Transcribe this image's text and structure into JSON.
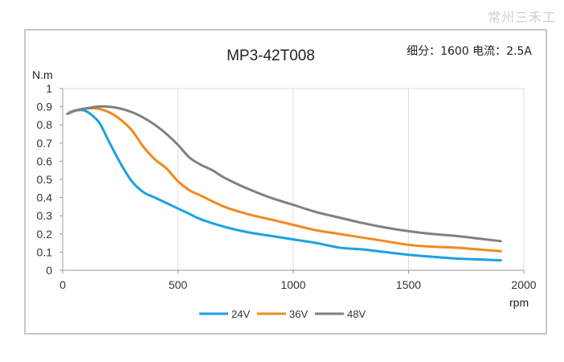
{
  "watermark": "常州三禾工",
  "chart_data": {
    "type": "line",
    "title": "MP3-42T008",
    "info": "细分：1600 电流：2.5A",
    "xlabel": "rpm",
    "ylabel": "N.m",
    "xlim": [
      0,
      2000
    ],
    "ylim": [
      0,
      1
    ],
    "xticks": [
      0,
      500,
      1000,
      1500,
      2000
    ],
    "yticks": [
      0,
      0.1,
      0.2,
      0.3,
      0.4,
      0.5,
      0.6,
      0.7,
      0.8,
      0.9,
      1
    ],
    "xtick_labels": [
      "0",
      "500",
      "1000",
      "1500",
      "2000"
    ],
    "ytick_labels": [
      "0",
      "0.1",
      "0.2",
      "0.3",
      "0.4",
      "0.5",
      "0.6",
      "0.7",
      "0.8",
      "0.9",
      "1"
    ],
    "grid": "vertical",
    "legend_position": "bottom",
    "series": [
      {
        "name": "24V",
        "color": "#1ba1e2",
        "x": [
          30,
          60,
          90,
          120,
          160,
          200,
          250,
          300,
          350,
          400,
          450,
          500,
          550,
          600,
          700,
          800,
          900,
          1000,
          1100,
          1200,
          1300,
          1400,
          1500,
          1600,
          1700,
          1800,
          1900
        ],
        "y": [
          0.87,
          0.88,
          0.88,
          0.86,
          0.81,
          0.71,
          0.59,
          0.49,
          0.43,
          0.4,
          0.37,
          0.34,
          0.31,
          0.28,
          0.24,
          0.21,
          0.19,
          0.17,
          0.15,
          0.125,
          0.115,
          0.1,
          0.085,
          0.075,
          0.065,
          0.06,
          0.055
        ]
      },
      {
        "name": "36V",
        "color": "#f08a1d",
        "x": [
          30,
          60,
          100,
          150,
          200,
          250,
          300,
          350,
          400,
          450,
          500,
          550,
          600,
          700,
          800,
          900,
          1000,
          1100,
          1200,
          1300,
          1400,
          1500,
          1600,
          1700,
          1800,
          1900
        ],
        "y": [
          0.87,
          0.88,
          0.89,
          0.89,
          0.87,
          0.83,
          0.77,
          0.68,
          0.61,
          0.56,
          0.49,
          0.44,
          0.41,
          0.35,
          0.31,
          0.28,
          0.25,
          0.22,
          0.2,
          0.18,
          0.16,
          0.14,
          0.13,
          0.125,
          0.115,
          0.105
        ]
      },
      {
        "name": "48V",
        "color": "#808080",
        "x": [
          20,
          60,
          100,
          150,
          200,
          250,
          300,
          350,
          400,
          450,
          500,
          550,
          600,
          650,
          700,
          800,
          900,
          1000,
          1100,
          1200,
          1300,
          1400,
          1500,
          1600,
          1700,
          1800,
          1900
        ],
        "y": [
          0.86,
          0.88,
          0.89,
          0.9,
          0.9,
          0.89,
          0.87,
          0.84,
          0.8,
          0.75,
          0.69,
          0.62,
          0.58,
          0.55,
          0.51,
          0.45,
          0.4,
          0.36,
          0.32,
          0.29,
          0.26,
          0.235,
          0.215,
          0.2,
          0.19,
          0.175,
          0.16
        ]
      }
    ]
  }
}
